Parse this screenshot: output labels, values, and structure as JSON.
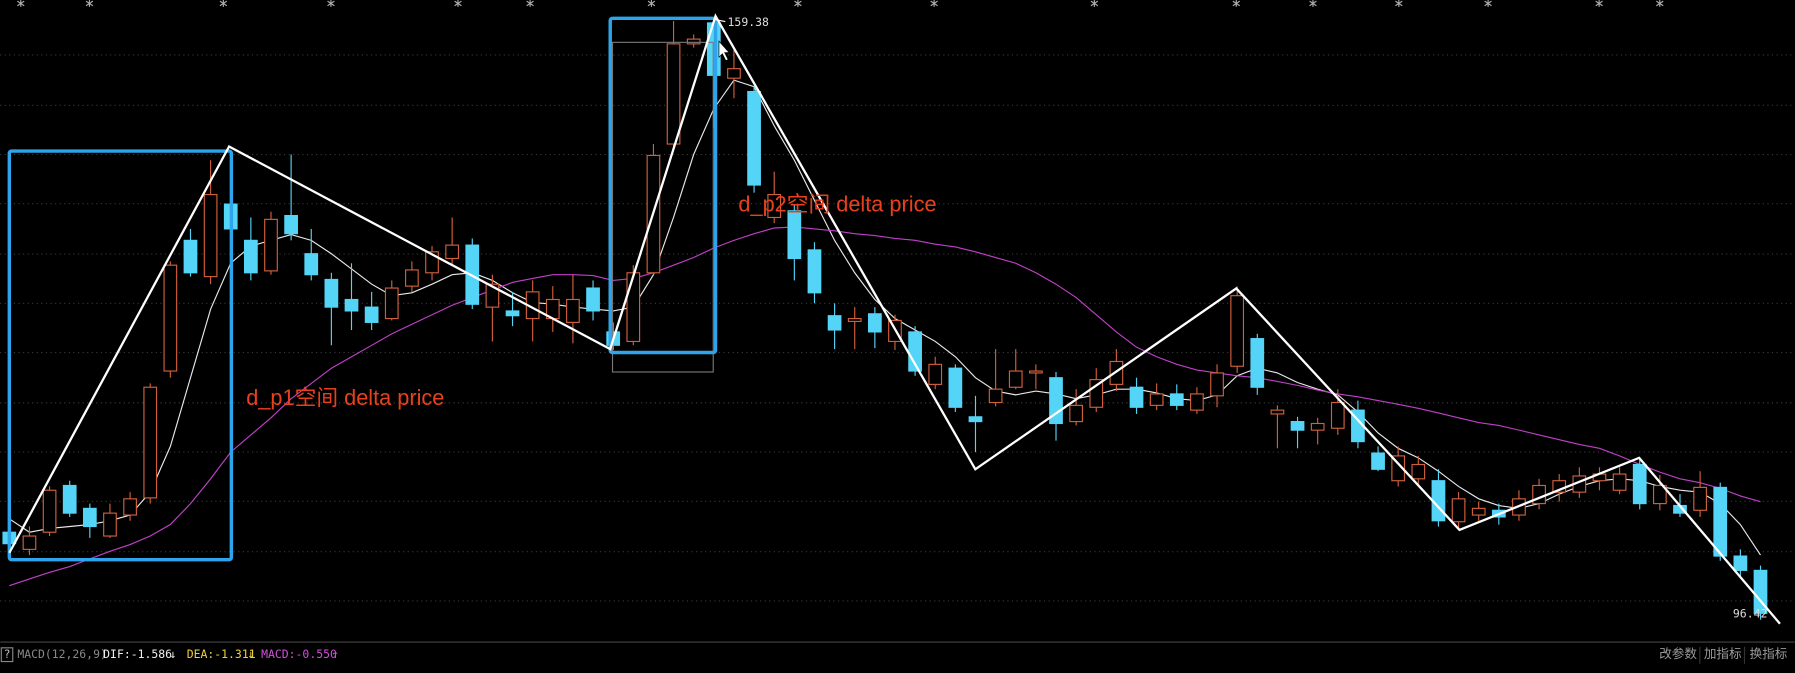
{
  "chart_data": {
    "type": "candlestick",
    "categories": [
      null,
      null,
      null,
      null,
      null,
      null,
      null,
      null,
      null,
      null,
      null,
      null,
      null,
      null,
      null,
      null,
      null,
      null,
      null,
      null,
      null,
      null,
      null,
      null,
      null,
      null,
      null,
      null,
      null,
      null,
      null,
      null,
      null,
      null,
      null,
      null,
      null,
      null,
      null,
      null,
      null,
      null,
      null,
      null,
      null,
      null,
      null,
      null,
      null,
      null,
      null,
      null,
      null,
      null,
      null,
      null,
      null,
      null,
      null,
      null,
      null,
      null,
      null,
      null,
      null,
      null,
      null,
      null,
      null,
      null,
      null,
      null,
      null,
      null,
      null,
      null,
      null,
      null,
      null,
      null,
      null,
      null,
      null,
      null,
      null,
      null,
      null,
      null
    ],
    "open": [
      105.6,
      103.8,
      105.6,
      110.5,
      108.1,
      105.2,
      107.4,
      109.2,
      122.5,
      136.2,
      132.4,
      140.0,
      136.2,
      133.0,
      138.8,
      134.8,
      132.1,
      130.0,
      129.2,
      128.0,
      131.4,
      132.8,
      134.3,
      135.7,
      129.2,
      128.8,
      128.0,
      128.0,
      127.6,
      131.2,
      126.6,
      125.6,
      132.8,
      146.3,
      156.8,
      159.0,
      153.2,
      151.8,
      138.6,
      139.3,
      135.2,
      128.3,
      127.7,
      128.5,
      125.6,
      126.6,
      121.1,
      122.8,
      117.7,
      119.2,
      120.8,
      122.3,
      121.8,
      117.2,
      118.7,
      121.1,
      120.8,
      118.9,
      120.1,
      118.4,
      119.9,
      123.0,
      125.9,
      118.0,
      117.2,
      116.3,
      116.5,
      118.4,
      113.9,
      111.0,
      111.2,
      111.0,
      106.7,
      107.4,
      107.9,
      107.4,
      108.6,
      109.8,
      109.8,
      111.0,
      110.0,
      112.7,
      108.6,
      108.4,
      107.9,
      110.3,
      103.1,
      101.6
    ],
    "high": [
      106.4,
      106.2,
      110.4,
      111.0,
      108.6,
      108.6,
      109.8,
      121.2,
      134.0,
      137.4,
      144.6,
      142.2,
      138.6,
      139.2,
      145.2,
      137.4,
      132.8,
      133.8,
      130.8,
      132.0,
      134.0,
      135.6,
      138.6,
      136.4,
      132.6,
      130.8,
      132.0,
      131.4,
      132.6,
      132.0,
      127.6,
      133.6,
      146.3,
      159.2,
      157.8,
      159.38,
      156.4,
      152.4,
      143.4,
      140.0,
      136.0,
      129.6,
      129.2,
      129.2,
      128.4,
      127.2,
      124.0,
      123.2,
      119.9,
      124.8,
      124.8,
      123.2,
      122.4,
      120.6,
      122.8,
      124.8,
      121.8,
      121.2,
      121.1,
      120.8,
      123.2,
      131.4,
      126.4,
      118.9,
      117.7,
      117.6,
      120.6,
      119.4,
      114.6,
      114.6,
      113.6,
      112.2,
      109.8,
      108.8,
      108.6,
      110.0,
      111.2,
      111.7,
      112.4,
      112.4,
      112.4,
      113.4,
      111.6,
      109.6,
      112.0,
      110.8,
      103.8,
      102.1
    ],
    "low": [
      103.6,
      103.2,
      105.2,
      107.2,
      105.0,
      105.0,
      106.8,
      108.6,
      121.8,
      132.4,
      131.6,
      136.2,
      132.0,
      132.6,
      136.2,
      132.0,
      125.2,
      126.8,
      126.8,
      127.8,
      130.8,
      132.0,
      133.6,
      129.0,
      125.6,
      127.2,
      125.6,
      126.6,
      125.4,
      127.8,
      124.7,
      125.2,
      132.6,
      145.8,
      156.4,
      148.0,
      151.1,
      141.2,
      138.0,
      132.0,
      129.6,
      124.8,
      124.8,
      124.9,
      124.7,
      122.0,
      120.6,
      118.2,
      114.0,
      118.8,
      120.6,
      120.6,
      115.2,
      116.8,
      118.2,
      120.4,
      118.0,
      118.4,
      118.4,
      118.0,
      118.7,
      122.3,
      120.0,
      114.4,
      114.4,
      114.8,
      115.8,
      114.4,
      112.0,
      110.4,
      110.4,
      106.2,
      106.0,
      106.8,
      106.4,
      106.8,
      108.0,
      108.8,
      109.2,
      110.0,
      109.6,
      108.0,
      107.9,
      107.2,
      107.2,
      102.6,
      100.9,
      96.42
    ],
    "close": [
      104.4,
      105.2,
      110.0,
      107.6,
      106.2,
      107.6,
      109.1,
      120.8,
      133.6,
      132.8,
      141.0,
      137.4,
      132.8,
      138.4,
      136.9,
      132.6,
      129.2,
      128.8,
      127.6,
      131.2,
      133.1,
      135.0,
      135.7,
      129.5,
      131.6,
      128.3,
      130.8,
      130.0,
      130.0,
      128.8,
      125.2,
      132.8,
      145.1,
      156.8,
      157.3,
      153.5,
      154.2,
      142.0,
      141.0,
      134.3,
      130.7,
      126.8,
      128.0,
      126.6,
      127.8,
      122.5,
      123.2,
      118.7,
      117.2,
      120.6,
      122.5,
      122.5,
      117.0,
      118.9,
      121.6,
      123.5,
      118.7,
      120.1,
      118.9,
      120.1,
      122.3,
      130.4,
      120.8,
      118.4,
      116.3,
      117.0,
      119.2,
      115.1,
      112.2,
      113.6,
      112.7,
      106.8,
      109.1,
      108.1,
      107.2,
      109.1,
      110.5,
      111.0,
      111.5,
      111.7,
      111.7,
      108.6,
      110.5,
      107.6,
      110.3,
      103.1,
      101.6,
      97.1
    ],
    "up_color": "#d0603c",
    "down_color": "#54d4f6",
    "lines": [
      {
        "color": "#e8e8e8",
        "values": [
          107.0,
          105.6,
          106.0,
          106.2,
          106.4,
          106.8,
          107.4,
          109.8,
          114.6,
          121.8,
          129.0,
          133.8,
          135.6,
          136.2,
          136.8,
          136.2,
          134.8,
          133.2,
          131.6,
          130.4,
          130.7,
          131.6,
          132.6,
          132.8,
          132.0,
          130.7,
          129.7,
          129.5,
          129.2,
          129.0,
          128.8,
          129.2,
          132.6,
          138.6,
          145.2,
          150.0,
          153.0,
          152.3,
          148.2,
          144.6,
          140.4,
          136.2,
          132.8,
          130.0,
          128.0,
          126.8,
          125.6,
          124.0,
          121.8,
          120.4,
          120.0,
          120.4,
          120.1,
          119.6,
          120.0,
          120.6,
          120.6,
          120.2,
          119.6,
          119.4,
          120.0,
          122.0,
          122.8,
          122.3,
          121.3,
          120.6,
          120.0,
          118.2,
          116.0,
          114.4,
          113.4,
          112.0,
          110.4,
          109.1,
          108.4,
          108.1,
          108.6,
          109.6,
          110.4,
          111.0,
          111.2,
          111.0,
          110.4,
          110.0,
          109.8,
          108.6,
          106.4,
          103.2
        ]
      },
      {
        "color": "#c040c8",
        "values": [
          100.0,
          100.7,
          101.4,
          102.0,
          102.8,
          103.6,
          104.3,
          105.2,
          106.4,
          108.6,
          111.2,
          114.0,
          115.8,
          117.6,
          119.6,
          121.2,
          122.8,
          124.0,
          125.2,
          126.4,
          127.4,
          128.4,
          129.4,
          130.2,
          131.0,
          131.8,
          132.2,
          132.6,
          132.6,
          132.5,
          132.0,
          132.2,
          132.8,
          133.6,
          134.4,
          135.4,
          136.2,
          136.9,
          137.5,
          137.6,
          137.4,
          137.2,
          136.9,
          136.7,
          136.4,
          136.2,
          135.8,
          135.5,
          135.0,
          134.4,
          133.8,
          132.8,
          131.6,
          130.2,
          128.4,
          126.6,
          125.0,
          124.0,
          123.2,
          122.6,
          122.3,
          122.0,
          121.8,
          121.4,
          121.0,
          120.5,
          120.1,
          119.8,
          119.4,
          119.0,
          118.6,
          118.1,
          117.6,
          117.1,
          116.8,
          116.3,
          115.8,
          115.3,
          114.8,
          114.4,
          113.6,
          112.7,
          111.9,
          111.2,
          110.8,
          110.2,
          109.4,
          108.8
        ]
      }
    ],
    "ylim": [
      94.2,
      161.4
    ],
    "annotations": [
      "d_p1空间 delta price",
      "d_p2空间 delta price"
    ]
  },
  "indicator_bar": {
    "help": "?",
    "name": "MACD(12,26,9)",
    "items": [
      {
        "label": "DIF:-1.586",
        "arrow": "↓"
      },
      {
        "label": "DEA:-1.311",
        "arrow": "↓"
      },
      {
        "label": "MACD:-0.550",
        "arrow": "↑"
      }
    ],
    "buttons": [
      "改参数",
      "加指标",
      "换指标"
    ]
  }
}
